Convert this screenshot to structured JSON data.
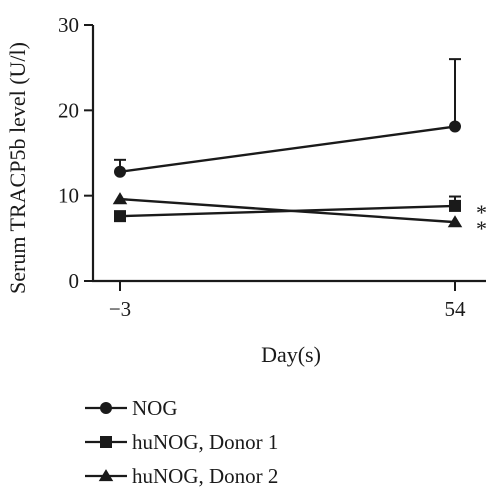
{
  "chart_data": {
    "type": "line",
    "title": "",
    "xlabel": "Day(s)",
    "ylabel": "Serum TRACP5b level (U/l)",
    "x": [
      -3,
      54
    ],
    "xtick_labels": [
      "−3",
      "54"
    ],
    "yticks": [
      0,
      10,
      20,
      30
    ],
    "ytick_labels": [
      "0",
      "10",
      "20",
      "30"
    ],
    "ylim": [
      0,
      30
    ],
    "grid": false,
    "legend": "bottom",
    "series": [
      {
        "name": "NOG",
        "marker": "circle",
        "values": [
          12.8,
          18.1
        ],
        "error_upper": [
          14.2,
          26.0
        ],
        "annotation": [
          "",
          ""
        ]
      },
      {
        "name": "huNOG, Donor 1",
        "marker": "square",
        "values": [
          7.6,
          8.8
        ],
        "error_upper": [
          7.6,
          9.9
        ],
        "annotation": [
          "",
          "*"
        ]
      },
      {
        "name": "huNOG, Donor 2",
        "marker": "triangle",
        "values": [
          9.6,
          6.9
        ],
        "error_upper": [
          9.6,
          6.9
        ],
        "annotation": [
          "",
          "*"
        ]
      }
    ],
    "color": "#1a1a1a"
  }
}
